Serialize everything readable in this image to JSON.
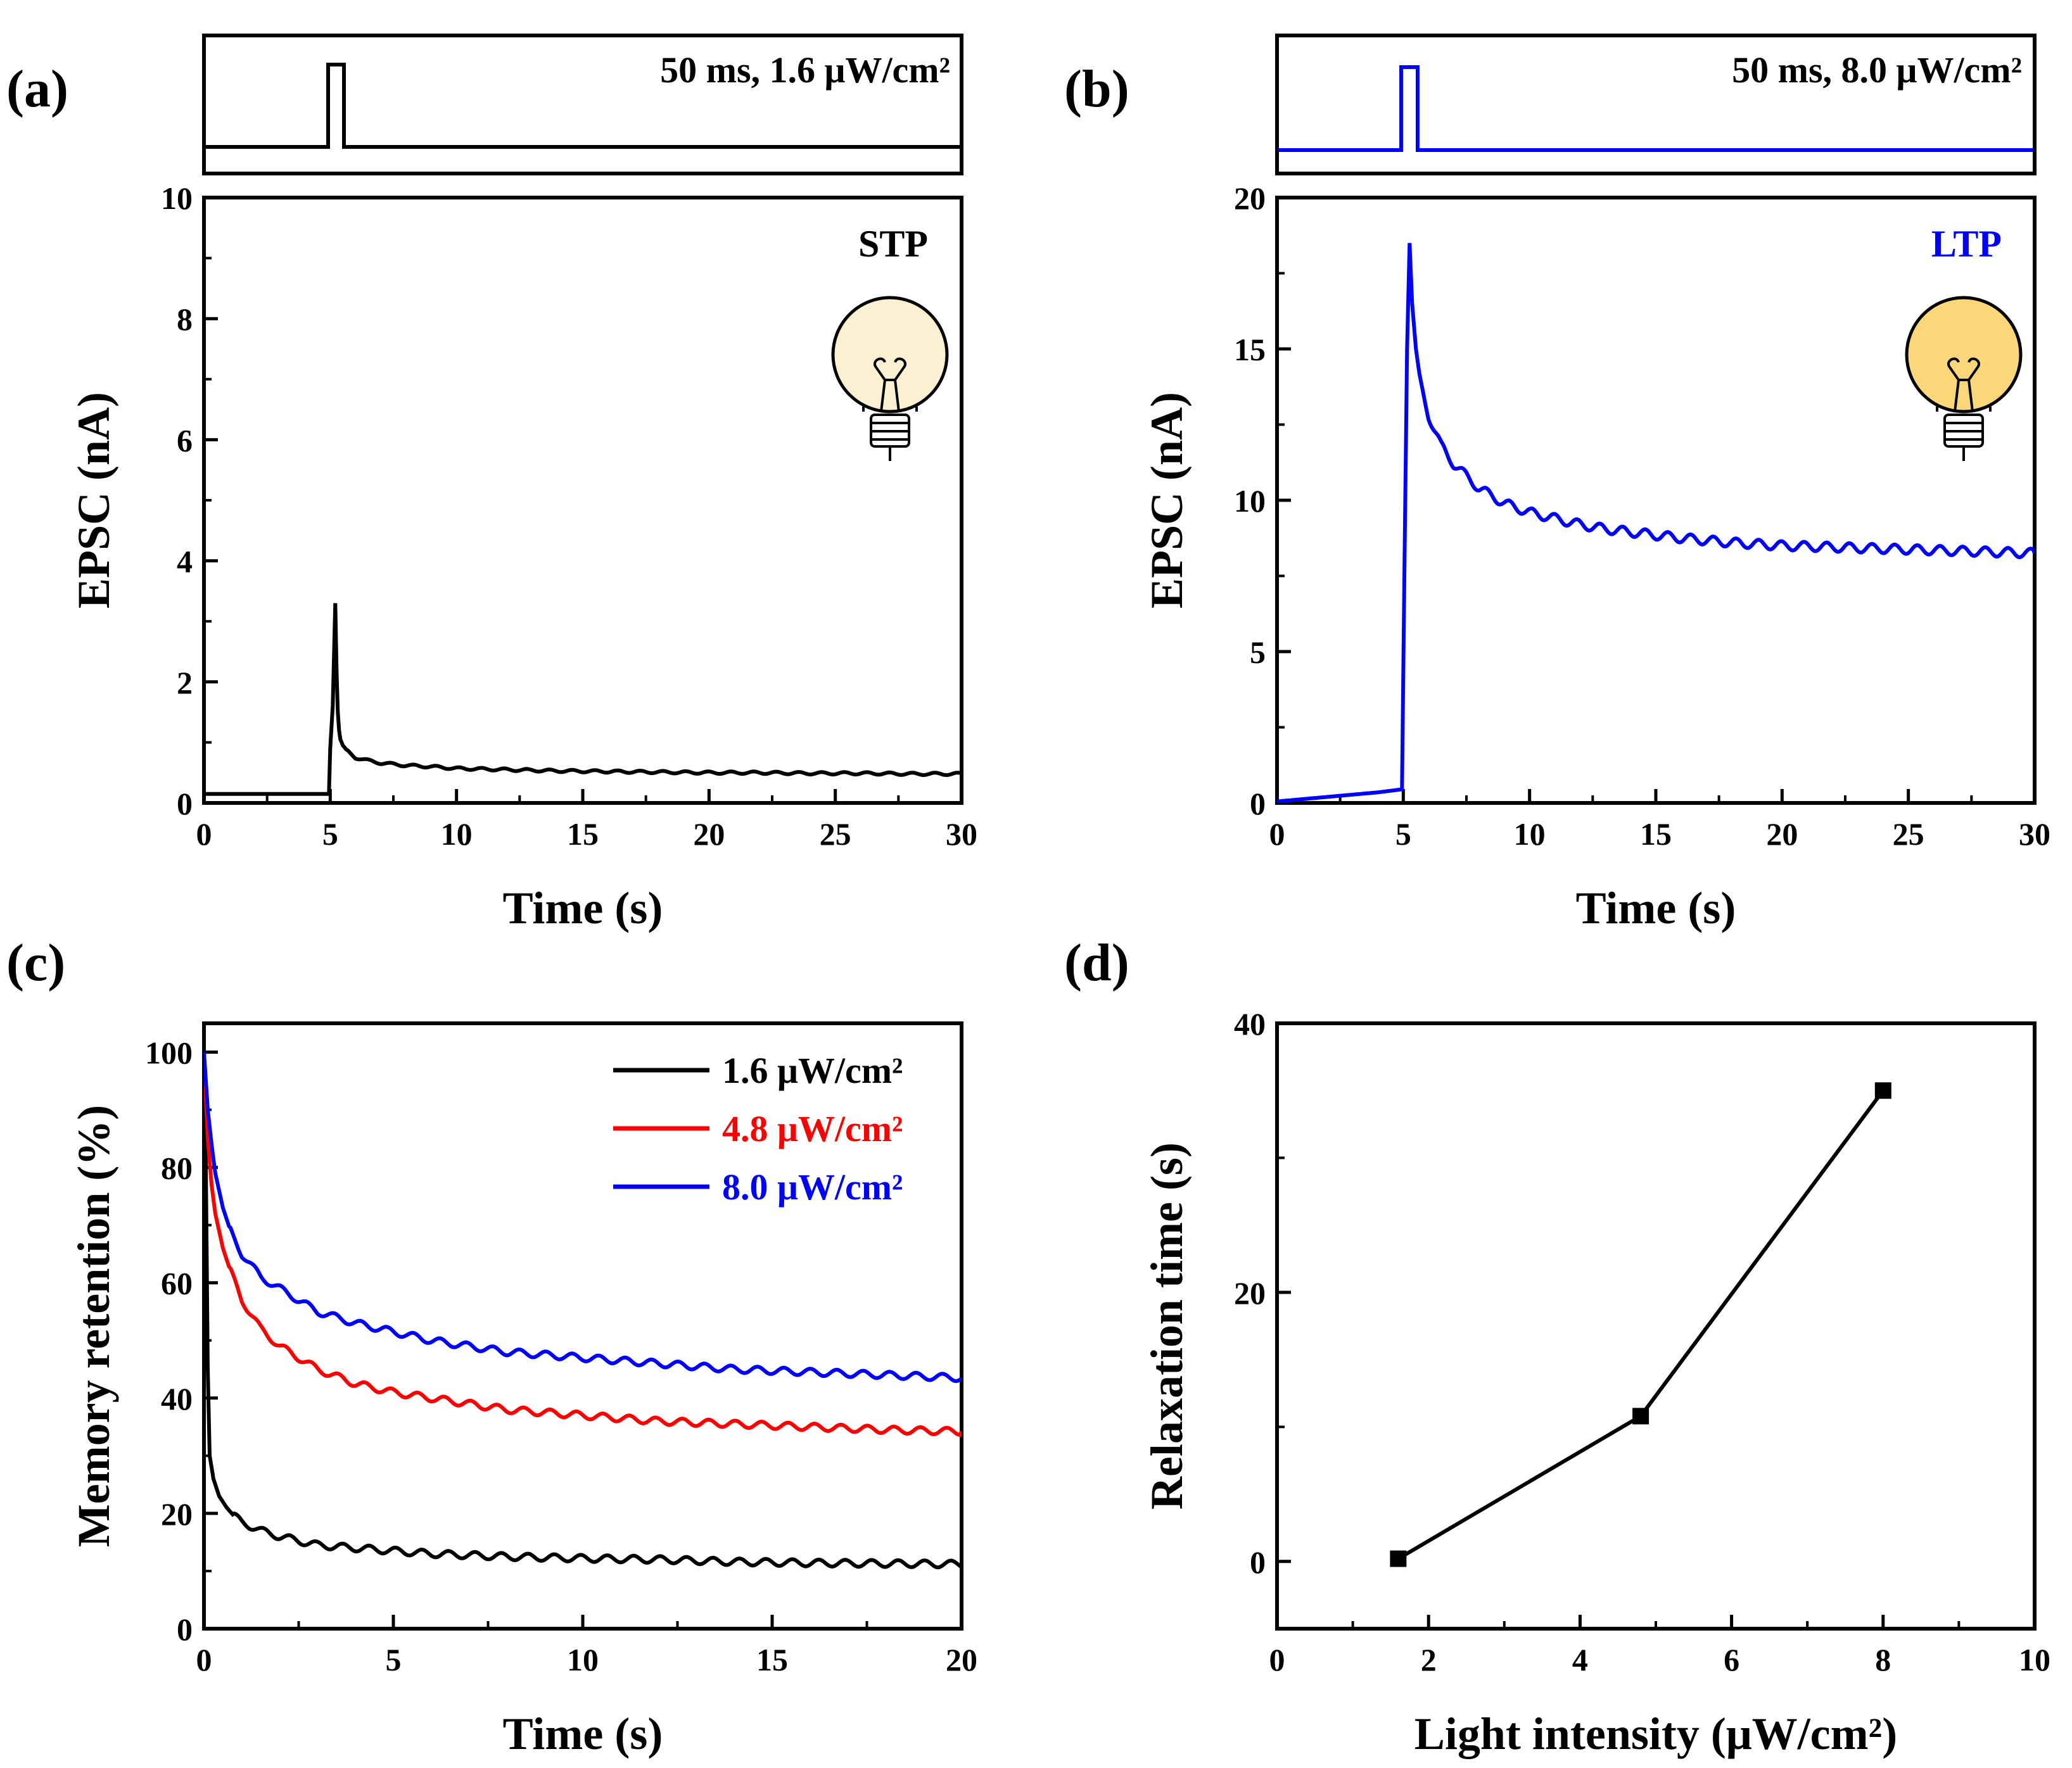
{
  "panels": [
    {
      "letter": "(a)",
      "pulse_label": "50 ms, 1.6 μW/cm²",
      "pulse_color": "#000000",
      "corner_label": "STP",
      "corner_color": "#000000",
      "bulb_color": "#fbf0d2",
      "bulb_icon": "lightbulb-icon"
    },
    {
      "letter": "(b)",
      "pulse_label": "50 ms, 8.0 μW/cm²",
      "pulse_color": "#0000ff",
      "corner_label": "LTP",
      "corner_color": "#0000ff",
      "bulb_color": "#fbd77a",
      "bulb_icon": "lightbulb-icon"
    },
    {
      "letter": "(c)"
    },
    {
      "letter": "(d)"
    }
  ],
  "chart_data": [
    {
      "id": "a",
      "type": "line",
      "xlabel": "Time (s)",
      "ylabel": "EPSC (nA)",
      "xlim": [
        0,
        30
      ],
      "ylim": [
        0,
        10
      ],
      "xticks": [
        0,
        5,
        10,
        15,
        20,
        25,
        30
      ],
      "yticks": [
        0,
        2,
        4,
        6,
        8,
        10
      ],
      "series": [
        {
          "color": "#000000",
          "x": [
            0,
            4.95,
            5.0,
            5.1,
            5.2,
            5.25,
            5.3,
            5.35,
            5.4,
            5.5,
            5.7,
            6.0,
            6.5,
            7,
            8,
            9,
            10,
            12,
            14,
            16,
            18,
            20,
            22,
            24,
            26,
            28,
            30
          ],
          "y": [
            0.15,
            0.15,
            0.9,
            1.6,
            3.3,
            2.2,
            1.5,
            1.2,
            1.05,
            0.95,
            0.85,
            0.75,
            0.7,
            0.66,
            0.62,
            0.6,
            0.57,
            0.55,
            0.53,
            0.52,
            0.51,
            0.5,
            0.5,
            0.49,
            0.49,
            0.48,
            0.48
          ]
        }
      ]
    },
    {
      "id": "b",
      "type": "line",
      "xlabel": "Time (s)",
      "ylabel": "EPSC (nA)",
      "xlim": [
        0,
        30
      ],
      "ylim": [
        0,
        20
      ],
      "xticks": [
        0,
        5,
        10,
        15,
        20,
        25,
        30
      ],
      "yticks": [
        0,
        5,
        10,
        15,
        20
      ],
      "series": [
        {
          "color": "#0000ff",
          "x": [
            0,
            2,
            4,
            4.95,
            5.05,
            5.15,
            5.25,
            5.35,
            5.5,
            5.7,
            6.0,
            6.5,
            7,
            7.5,
            8,
            9,
            10,
            11,
            12,
            13,
            14,
            15,
            16,
            18,
            20,
            22,
            24,
            26,
            28,
            30
          ],
          "y": [
            0.05,
            0.2,
            0.35,
            0.45,
            8.0,
            15.0,
            18.5,
            16.5,
            15.0,
            13.8,
            12.8,
            11.8,
            11.2,
            10.8,
            10.4,
            9.9,
            9.6,
            9.4,
            9.2,
            9.05,
            8.95,
            8.85,
            8.75,
            8.6,
            8.5,
            8.45,
            8.4,
            8.35,
            8.3,
            8.25
          ]
        }
      ]
    },
    {
      "id": "c",
      "type": "line",
      "xlabel": "Time (s)",
      "ylabel": "Memory retention (%)",
      "xlim": [
        0,
        20
      ],
      "ylim": [
        0,
        105
      ],
      "xticks": [
        0,
        5,
        10,
        15,
        20
      ],
      "yticks": [
        0,
        20,
        40,
        60,
        80,
        100
      ],
      "legend": "top-right",
      "series": [
        {
          "name": "1.6 μW/cm²",
          "color": "#000000",
          "x": [
            0,
            0.05,
            0.1,
            0.15,
            0.25,
            0.4,
            0.6,
            0.8,
            1.0,
            1.5,
            2,
            3,
            4,
            5,
            6,
            8,
            10,
            12,
            14,
            16,
            18,
            20
          ],
          "y": [
            100,
            80,
            45,
            30,
            26,
            23,
            21,
            19.5,
            18.5,
            17,
            16,
            14.5,
            14,
            13.5,
            13,
            12.5,
            12.2,
            12,
            11.6,
            11.4,
            11.3,
            11.2
          ]
        },
        {
          "name": "4.8 μW/cm²",
          "color": "#ff0000",
          "x": [
            0,
            0.05,
            0.1,
            0.2,
            0.3,
            0.5,
            0.7,
            1.0,
            1.5,
            2,
            3,
            4,
            5,
            6,
            7,
            8,
            10,
            12,
            14,
            16,
            18,
            20
          ],
          "y": [
            100,
            92,
            85,
            77,
            72,
            66,
            62,
            57,
            52,
            49,
            45,
            42.5,
            41,
            40,
            39,
            38,
            37,
            36,
            35.5,
            35,
            34.5,
            34.2
          ]
        },
        {
          "name": "8.0 μW/cm²",
          "color": "#0000ff",
          "x": [
            0,
            0.05,
            0.1,
            0.2,
            0.3,
            0.5,
            0.7,
            1.0,
            1.5,
            2,
            3,
            4,
            5,
            6,
            7,
            8,
            10,
            12,
            14,
            16,
            18,
            20
          ],
          "y": [
            100,
            95,
            90,
            84,
            79,
            73,
            69,
            65,
            61,
            59,
            55,
            53,
            51.5,
            50,
            49,
            48,
            47,
            46,
            45,
            44.5,
            44,
            43.5
          ]
        }
      ]
    },
    {
      "id": "d",
      "type": "line",
      "xlabel": "Light intensity (μW/cm²)",
      "ylabel": "Relaxation time (s)",
      "xlim": [
        0,
        10
      ],
      "ylim": [
        -5,
        40
      ],
      "xticks": [
        0,
        2,
        4,
        6,
        8,
        10
      ],
      "yticks": [
        0,
        20,
        40
      ],
      "series": [
        {
          "color": "#000000",
          "marker": "square",
          "x": [
            1.6,
            4.8,
            8.0
          ],
          "y": [
            0.2,
            10.8,
            35.0
          ]
        }
      ]
    }
  ]
}
